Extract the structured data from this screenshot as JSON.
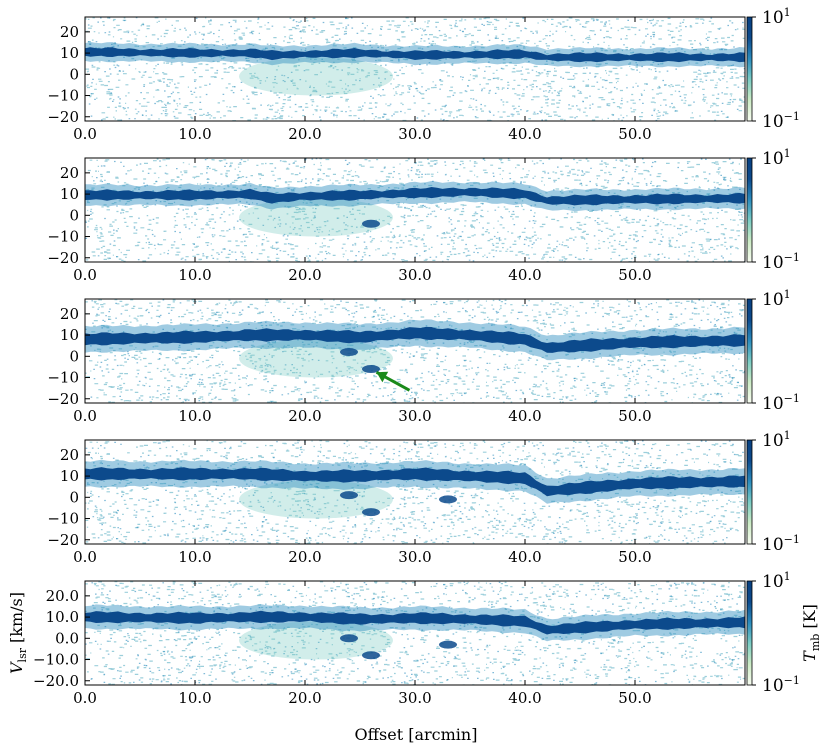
{
  "chart_data": {
    "type": "heatmap",
    "xlabel": "Offset [arcmin]",
    "ylabel": "V_lsr [km/s]",
    "colorbar_label": "T_mb [K]",
    "colorscale": "log",
    "colorbar_range": [
      0.1,
      10
    ],
    "colorbar_ticks": [
      {
        "base": "10",
        "exp": "1"
      },
      {
        "base": "10",
        "exp": "−1"
      }
    ],
    "colormap": [
      "#f7fcf0",
      "#ccebc5",
      "#7bccc4",
      "#2b8cbe",
      "#0c4a8c",
      "#084081"
    ],
    "xlim": [
      0,
      60
    ],
    "ylim": [
      -22,
      27
    ],
    "xticks": [
      0,
      10,
      20,
      30,
      40,
      50
    ],
    "xtick_labels": [
      "0.0",
      "10.0",
      "20.0",
      "30.0",
      "40.0",
      "50.0"
    ],
    "yticks": [
      20,
      10,
      0,
      -10,
      -20
    ],
    "panels": [
      {
        "ytick_labels": [
          "20",
          "10",
          "0",
          "−10",
          "−20"
        ],
        "ridge": [
          [
            0,
            10.5
          ],
          [
            10,
            10
          ],
          [
            15,
            10
          ],
          [
            17,
            9
          ],
          [
            20,
            9.5
          ],
          [
            25,
            10
          ],
          [
            30,
            9
          ],
          [
            40,
            9.5
          ],
          [
            42,
            8
          ],
          [
            50,
            8
          ],
          [
            60,
            8
          ]
        ],
        "ridge_width": 3.5,
        "features": []
      },
      {
        "ytick_labels": [
          "20",
          "10",
          "0",
          "−10",
          "−20"
        ],
        "ridge": [
          [
            0,
            9.5
          ],
          [
            10,
            9.5
          ],
          [
            15,
            10
          ],
          [
            17,
            8
          ],
          [
            20,
            9
          ],
          [
            25,
            9.5
          ],
          [
            30,
            10.5
          ],
          [
            35,
            11
          ],
          [
            40,
            10
          ],
          [
            42,
            7
          ],
          [
            50,
            7.5
          ],
          [
            60,
            8
          ]
        ],
        "ridge_width": 4,
        "features": [
          [
            26,
            -4
          ]
        ]
      },
      {
        "ytick_labels": [
          "20",
          "10",
          "0",
          "−10",
          "−20"
        ],
        "ridge": [
          [
            0,
            8
          ],
          [
            10,
            9
          ],
          [
            15,
            10
          ],
          [
            20,
            10
          ],
          [
            25,
            9
          ],
          [
            30,
            11
          ],
          [
            35,
            10
          ],
          [
            40,
            8
          ],
          [
            42,
            4
          ],
          [
            50,
            6.5
          ],
          [
            60,
            7.5
          ]
        ],
        "ridge_width": 5,
        "features": [
          [
            24,
            2
          ],
          [
            26,
            -6
          ]
        ],
        "annotation": {
          "type": "arrow",
          "color": "#1a8a1a",
          "from": [
            29.5,
            -16
          ],
          "to": [
            26.5,
            -7.5
          ]
        }
      },
      {
        "ytick_labels": [
          "20",
          "10",
          "0",
          "−10",
          "−20"
        ],
        "ridge": [
          [
            0,
            11
          ],
          [
            10,
            11
          ],
          [
            15,
            11
          ],
          [
            20,
            10
          ],
          [
            25,
            10
          ],
          [
            30,
            11
          ],
          [
            35,
            10
          ],
          [
            40,
            9
          ],
          [
            42,
            3
          ],
          [
            50,
            6.5
          ],
          [
            60,
            7.5
          ]
        ],
        "ridge_width": 5,
        "features": [
          [
            24,
            1
          ],
          [
            26,
            -7
          ],
          [
            33,
            -1
          ]
        ]
      },
      {
        "ytick_labels": [
          "20.0",
          "10.0",
          "0.0",
          "−10.0",
          "−20.0"
        ],
        "ridge": [
          [
            0,
            10
          ],
          [
            10,
            9.5
          ],
          [
            15,
            10
          ],
          [
            20,
            10
          ],
          [
            25,
            9
          ],
          [
            30,
            9.5
          ],
          [
            35,
            9
          ],
          [
            40,
            8
          ],
          [
            42,
            4
          ],
          [
            50,
            6.5
          ],
          [
            60,
            7.5
          ]
        ],
        "ridge_width": 4.5,
        "features": [
          [
            24,
            0
          ],
          [
            26,
            -8
          ],
          [
            33,
            -3
          ]
        ],
        "show_axis_labels": true
      }
    ]
  }
}
